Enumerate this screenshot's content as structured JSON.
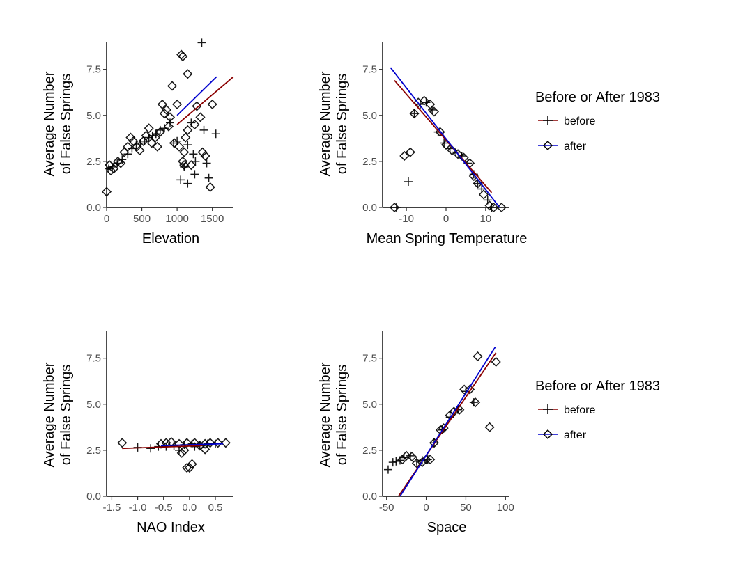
{
  "chart_data": [
    {
      "type": "scatter",
      "xlabel": "Elevation",
      "ylabel": [
        "Average Number",
        "of False Springs"
      ],
      "xlim": [
        0,
        1800
      ],
      "ylim": [
        0,
        9
      ],
      "xticks": [
        0,
        500,
        1000,
        1500
      ],
      "yticks": [
        0.0,
        2.5,
        5.0,
        7.5
      ],
      "xtick_labels": [
        "0",
        "500",
        "1000",
        "1500"
      ],
      "ytick_labels": [
        "0.0",
        "2.5",
        "5.0",
        "7.5"
      ],
      "series": [
        {
          "name": "before",
          "marker": "plus",
          "points": [
            [
              30,
              2.1
            ],
            [
              80,
              2.2
            ],
            [
              150,
              2.4
            ],
            [
              220,
              2.6
            ],
            [
              300,
              2.9
            ],
            [
              360,
              3.2
            ],
            [
              420,
              3.4
            ],
            [
              480,
              3.5
            ],
            [
              540,
              3.6
            ],
            [
              600,
              3.8
            ],
            [
              650,
              3.9
            ],
            [
              700,
              4.0
            ],
            [
              760,
              4.2
            ],
            [
              820,
              4.3
            ],
            [
              900,
              4.6
            ],
            [
              950,
              3.5
            ],
            [
              1000,
              3.6
            ],
            [
              1050,
              1.5
            ],
            [
              1100,
              2.2
            ],
            [
              1150,
              3.4
            ],
            [
              1200,
              4.6
            ],
            [
              1230,
              2.9
            ],
            [
              1260,
              2.5
            ],
            [
              1350,
              8.95
            ],
            [
              1380,
              4.2
            ],
            [
              1450,
              1.6
            ],
            [
              1550,
              4.0
            ],
            [
              1420,
              2.4
            ],
            [
              1150,
              1.3
            ],
            [
              1250,
              1.8
            ]
          ],
          "line": [
            [
              1000,
              4.5
            ],
            [
              1800,
              7.1
            ]
          ]
        },
        {
          "name": "after",
          "marker": "diamond",
          "points": [
            [
              0,
              0.85
            ],
            [
              40,
              2.3
            ],
            [
              60,
              2.0
            ],
            [
              100,
              2.1
            ],
            [
              160,
              2.5
            ],
            [
              200,
              2.4
            ],
            [
              250,
              3.0
            ],
            [
              300,
              3.3
            ],
            [
              340,
              3.8
            ],
            [
              380,
              3.6
            ],
            [
              430,
              3.3
            ],
            [
              470,
              3.1
            ],
            [
              520,
              3.6
            ],
            [
              560,
              3.9
            ],
            [
              600,
              4.3
            ],
            [
              640,
              3.5
            ],
            [
              690,
              3.8
            ],
            [
              720,
              3.3
            ],
            [
              760,
              4.1
            ],
            [
              790,
              5.6
            ],
            [
              820,
              5.1
            ],
            [
              850,
              5.3
            ],
            [
              880,
              4.4
            ],
            [
              900,
              4.9
            ],
            [
              930,
              6.6
            ],
            [
              960,
              3.5
            ],
            [
              1000,
              5.6
            ],
            [
              1030,
              3.3
            ],
            [
              1060,
              8.3
            ],
            [
              1080,
              8.2
            ],
            [
              1100,
              3.0
            ],
            [
              1120,
              3.8
            ],
            [
              1150,
              7.25
            ],
            [
              1200,
              2.3
            ],
            [
              1250,
              4.5
            ],
            [
              1280,
              5.5
            ],
            [
              1330,
              4.9
            ],
            [
              1360,
              3.0
            ],
            [
              1400,
              2.8
            ],
            [
              1470,
              1.1
            ],
            [
              1500,
              5.6
            ],
            [
              1080,
              2.5
            ],
            [
              1100,
              2.3
            ],
            [
              1150,
              4.2
            ]
          ],
          "line": [
            [
              1000,
              5.0
            ],
            [
              1560,
              7.1
            ]
          ]
        }
      ]
    },
    {
      "type": "scatter",
      "xlabel": "Mean Spring Temperature",
      "ylabel": [
        "Average Number",
        "of False Springs"
      ],
      "xlim": [
        -16,
        16
      ],
      "ylim": [
        0,
        9
      ],
      "xticks": [
        -10,
        0,
        10
      ],
      "yticks": [
        0.0,
        2.5,
        5.0,
        7.5
      ],
      "xtick_labels": [
        "-10",
        "0",
        "10"
      ],
      "ytick_labels": [
        "0.0",
        "2.5",
        "5.0",
        "7.5"
      ],
      "series": [
        {
          "name": "before",
          "marker": "plus",
          "points": [
            [
              -9.5,
              1.4
            ],
            [
              -8,
              5.1
            ],
            [
              -6.5,
              5.6
            ],
            [
              -5,
              5.7
            ],
            [
              -3.5,
              5.3
            ],
            [
              -2,
              4.1
            ],
            [
              -0.5,
              3.5
            ],
            [
              1,
              3.2
            ],
            [
              2.5,
              3.0
            ],
            [
              4,
              2.8
            ],
            [
              5.5,
              2.4
            ],
            [
              7,
              1.8
            ],
            [
              8,
              1.3
            ],
            [
              9,
              1.0
            ],
            [
              10.5,
              0.4
            ],
            [
              11.5,
              0.0
            ],
            [
              -12.5,
              0.0
            ]
          ],
          "line": [
            [
              -13,
              6.9
            ],
            [
              11.5,
              0.8
            ]
          ]
        },
        {
          "name": "after",
          "marker": "diamond",
          "points": [
            [
              -10.5,
              2.8
            ],
            [
              -9,
              3.0
            ],
            [
              -8,
              5.1
            ],
            [
              -7,
              5.7
            ],
            [
              -5.5,
              5.8
            ],
            [
              -4,
              5.6
            ],
            [
              -3,
              5.2
            ],
            [
              -1.5,
              4.1
            ],
            [
              0,
              3.4
            ],
            [
              1.5,
              3.1
            ],
            [
              3,
              2.9
            ],
            [
              4.5,
              2.7
            ],
            [
              6,
              2.4
            ],
            [
              7,
              1.7
            ],
            [
              8,
              1.3
            ],
            [
              9.5,
              0.7
            ],
            [
              11,
              0.1
            ],
            [
              12,
              0.0
            ],
            [
              14,
              0.0
            ],
            [
              -13,
              0.0
            ]
          ],
          "line": [
            [
              -14,
              7.6
            ],
            [
              13.5,
              0.0
            ]
          ]
        }
      ]
    },
    {
      "type": "scatter",
      "xlabel": "NAO Index",
      "ylabel": [
        "Average Number",
        "of False Springs"
      ],
      "xlim": [
        -1.6,
        0.85
      ],
      "ylim": [
        0,
        9
      ],
      "xticks": [
        -1.5,
        -1.0,
        -0.5,
        0.0,
        0.5
      ],
      "yticks": [
        0.0,
        2.5,
        5.0,
        7.5
      ],
      "xtick_labels": [
        "-1.5",
        "-1.0",
        "-0.5",
        "0.0",
        "0.5"
      ],
      "ytick_labels": [
        "0.0",
        "2.5",
        "5.0",
        "7.5"
      ],
      "series": [
        {
          "name": "before",
          "marker": "plus",
          "points": [
            [
              -1.0,
              2.65
            ],
            [
              -0.75,
              2.6
            ],
            [
              -0.6,
              2.7
            ],
            [
              -0.45,
              2.7
            ],
            [
              -0.3,
              2.75
            ],
            [
              -0.1,
              2.8
            ],
            [
              0.05,
              2.85
            ],
            [
              0.2,
              2.8
            ],
            [
              0.35,
              2.85
            ],
            [
              0.5,
              2.85
            ],
            [
              -0.2,
              2.5
            ],
            [
              0.1,
              2.7
            ]
          ],
          "line": [
            [
              -1.3,
              2.6
            ],
            [
              0.25,
              2.75
            ]
          ]
        },
        {
          "name": "after",
          "marker": "diamond",
          "points": [
            [
              -1.3,
              2.9
            ],
            [
              -0.55,
              2.85
            ],
            [
              -0.45,
              2.9
            ],
            [
              -0.35,
              2.95
            ],
            [
              -0.2,
              2.85
            ],
            [
              -0.15,
              2.35
            ],
            [
              -0.1,
              2.5
            ],
            [
              -0.05,
              2.9
            ],
            [
              0.0,
              1.55
            ],
            [
              0.05,
              1.75
            ],
            [
              0.1,
              2.9
            ],
            [
              0.2,
              2.75
            ],
            [
              0.3,
              2.85
            ],
            [
              0.4,
              2.9
            ],
            [
              0.55,
              2.9
            ],
            [
              0.7,
              2.9
            ],
            [
              -0.05,
              1.55
            ],
            [
              0.3,
              2.55
            ]
          ],
          "line": [
            [
              -0.55,
              2.75
            ],
            [
              0.65,
              2.85
            ]
          ]
        }
      ]
    },
    {
      "type": "scatter",
      "xlabel": "Space",
      "ylabel": [
        "Average Number",
        "of False Springs"
      ],
      "xlim": [
        -55,
        105
      ],
      "ylim": [
        0,
        9
      ],
      "xticks": [
        -50,
        0,
        50,
        100
      ],
      "yticks": [
        0.0,
        2.5,
        5.0,
        7.5
      ],
      "xtick_labels": [
        "-50",
        "0",
        "50",
        "100"
      ],
      "ytick_labels": [
        "0.0",
        "2.5",
        "5.0",
        "7.5"
      ],
      "series": [
        {
          "name": "before",
          "marker": "plus",
          "points": [
            [
              -48,
              1.45
            ],
            [
              -42,
              1.85
            ],
            [
              -38,
              1.9
            ],
            [
              -33,
              1.95
            ],
            [
              -28,
              2.1
            ],
            [
              -20,
              2.2
            ],
            [
              -12,
              1.9
            ],
            [
              -5,
              1.95
            ],
            [
              2,
              2.0
            ],
            [
              10,
              2.9
            ],
            [
              20,
              3.6
            ],
            [
              30,
              4.3
            ],
            [
              40,
              4.7
            ],
            [
              50,
              5.7
            ],
            [
              60,
              5.1
            ]
          ],
          "line": [
            [
              -35,
              0.0
            ],
            [
              88,
              7.8
            ]
          ]
        },
        {
          "name": "after",
          "marker": "diamond",
          "points": [
            [
              -30,
              2.0
            ],
            [
              -25,
              2.2
            ],
            [
              -18,
              2.15
            ],
            [
              -12,
              1.8
            ],
            [
              -5,
              1.85
            ],
            [
              0,
              2.0
            ],
            [
              5,
              2.0
            ],
            [
              10,
              2.9
            ],
            [
              18,
              3.6
            ],
            [
              22,
              3.7
            ],
            [
              30,
              4.4
            ],
            [
              35,
              4.6
            ],
            [
              42,
              4.7
            ],
            [
              48,
              5.8
            ],
            [
              55,
              5.8
            ],
            [
              62,
              5.1
            ],
            [
              65,
              7.6
            ],
            [
              80,
              3.75
            ],
            [
              88,
              7.3
            ]
          ],
          "line": [
            [
              -33,
              0.0
            ],
            [
              87,
              8.1
            ]
          ]
        }
      ]
    }
  ],
  "legends": [
    {
      "title": "Before or After 1983",
      "items": [
        {
          "label": "before",
          "color": "#8b0000",
          "marker": "plus"
        },
        {
          "label": "after",
          "color": "#0000cd",
          "marker": "diamond"
        }
      ]
    },
    {
      "title": "Before or After 1983",
      "items": [
        {
          "label": "before",
          "color": "#8b0000",
          "marker": "plus"
        },
        {
          "label": "after",
          "color": "#0000cd",
          "marker": "diamond"
        }
      ]
    }
  ],
  "colors": {
    "before_line": "#8b0000",
    "after_line": "#0000cd",
    "points": "#000000",
    "axis": "#000000"
  }
}
